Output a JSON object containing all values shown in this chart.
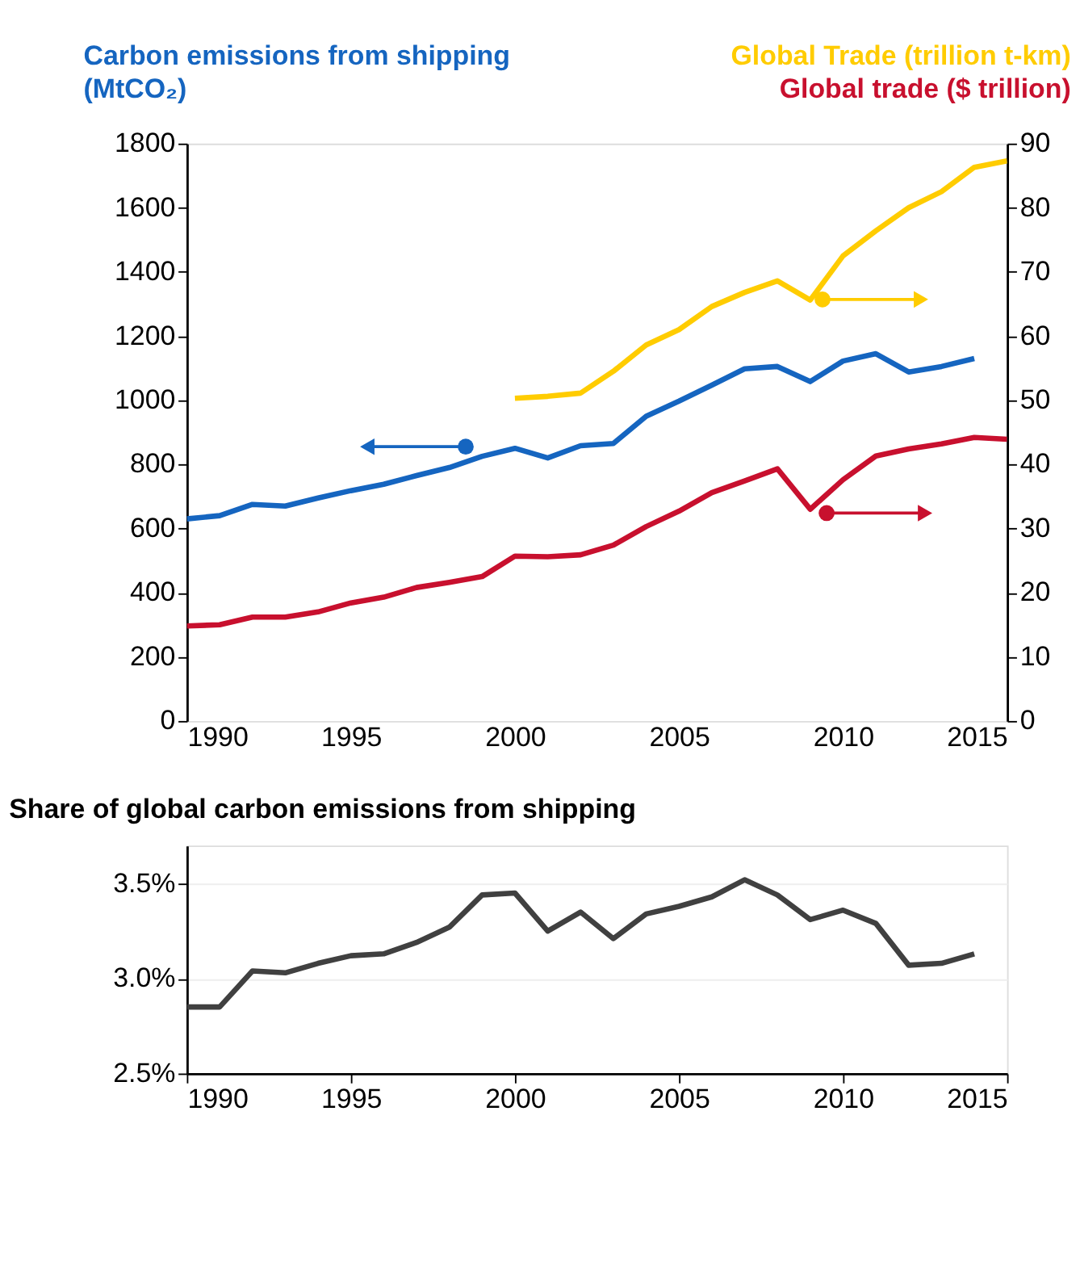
{
  "chart_data": [
    {
      "type": "line",
      "xlim": [
        1990,
        2015
      ],
      "xticks": [
        1990,
        1995,
        2000,
        2005,
        2010,
        2015
      ],
      "ylim": [
        0,
        1800
      ],
      "yticks": [
        0,
        200,
        400,
        600,
        800,
        1000,
        1200,
        1400,
        1600,
        1800
      ],
      "y2lim": [
        0,
        90
      ],
      "y2ticks": [
        0,
        10,
        20,
        30,
        40,
        50,
        60,
        70,
        80,
        90
      ],
      "series": [
        {
          "name": "Carbon emissions from shipping (MtCO₂)",
          "color": "#1565c0",
          "x": [
            1990,
            1991,
            1992,
            1993,
            1994,
            1995,
            1996,
            1997,
            1998,
            1999,
            2000,
            2001,
            2002,
            2003,
            2004,
            2005,
            2006,
            2007,
            2008,
            2009,
            2010,
            2011,
            2012,
            2013,
            2014
          ],
          "values": [
            630,
            640,
            675,
            670,
            695,
            718,
            738,
            765,
            790,
            825,
            850,
            820,
            858,
            865,
            950,
            997,
            1047,
            1098,
            1105,
            1058,
            1122,
            1145,
            1088,
            1105,
            1130
          ]
        },
        {
          "name": "Global Trade (trillion t-km)",
          "color": "#ffcc00",
          "axis": "y2",
          "x": [
            2000,
            2001,
            2002,
            2003,
            2004,
            2005,
            2006,
            2007,
            2008,
            2009,
            2010,
            2011,
            2012,
            2013,
            2014,
            2015
          ],
          "values": [
            50.3,
            50.6,
            51.1,
            54.5,
            58.6,
            61.0,
            64.6,
            66.8,
            68.6,
            65.6,
            72.5,
            76.4,
            80.0,
            82.5,
            86.3,
            87.3
          ]
        },
        {
          "name": "Global trade ($ trillion)",
          "color": "#c8102e",
          "axis": "y2",
          "x": [
            1990,
            1991,
            1992,
            1993,
            1994,
            1995,
            1996,
            1997,
            1998,
            1999,
            2000,
            2001,
            2002,
            2003,
            2004,
            2005,
            2006,
            2007,
            2008,
            2009,
            2010,
            2011,
            2012,
            2013,
            2014,
            2015
          ],
          "values": [
            14.8,
            15.0,
            16.2,
            16.2,
            17.0,
            18.4,
            19.3,
            20.8,
            21.6,
            22.5,
            25.7,
            25.6,
            25.9,
            27.4,
            30.3,
            32.7,
            35.6,
            37.4,
            39.3,
            33.0,
            37.6,
            41.3,
            42.4,
            43.2,
            44.2,
            43.9
          ]
        }
      ]
    },
    {
      "type": "line",
      "title": "Share of global carbon emissions from shipping",
      "xlim": [
        1990,
        2015
      ],
      "xticks": [
        1990,
        1995,
        2000,
        2005,
        2010,
        2015
      ],
      "ylim": [
        2.5,
        3.7
      ],
      "yticks": [
        {
          "value": 2.5,
          "label": "2.5%"
        },
        {
          "value": 3.0,
          "label": "3.0%"
        },
        {
          "value": 3.5,
          "label": "3.5%"
        }
      ],
      "grid": "y",
      "series": [
        {
          "color": "#404040",
          "x": [
            1990,
            1991,
            1992,
            1993,
            1994,
            1995,
            1996,
            1997,
            1998,
            1999,
            2000,
            2001,
            2002,
            2003,
            2004,
            2005,
            2006,
            2007,
            2008,
            2009,
            2010,
            2011,
            2012,
            2013,
            2014
          ],
          "values": [
            2.85,
            2.85,
            3.04,
            3.03,
            3.08,
            3.12,
            3.13,
            3.19,
            3.27,
            3.44,
            3.45,
            3.25,
            3.35,
            3.21,
            3.34,
            3.38,
            3.43,
            3.52,
            3.44,
            3.31,
            3.36,
            3.29,
            3.07,
            3.08,
            3.13
          ]
        }
      ]
    }
  ]
}
